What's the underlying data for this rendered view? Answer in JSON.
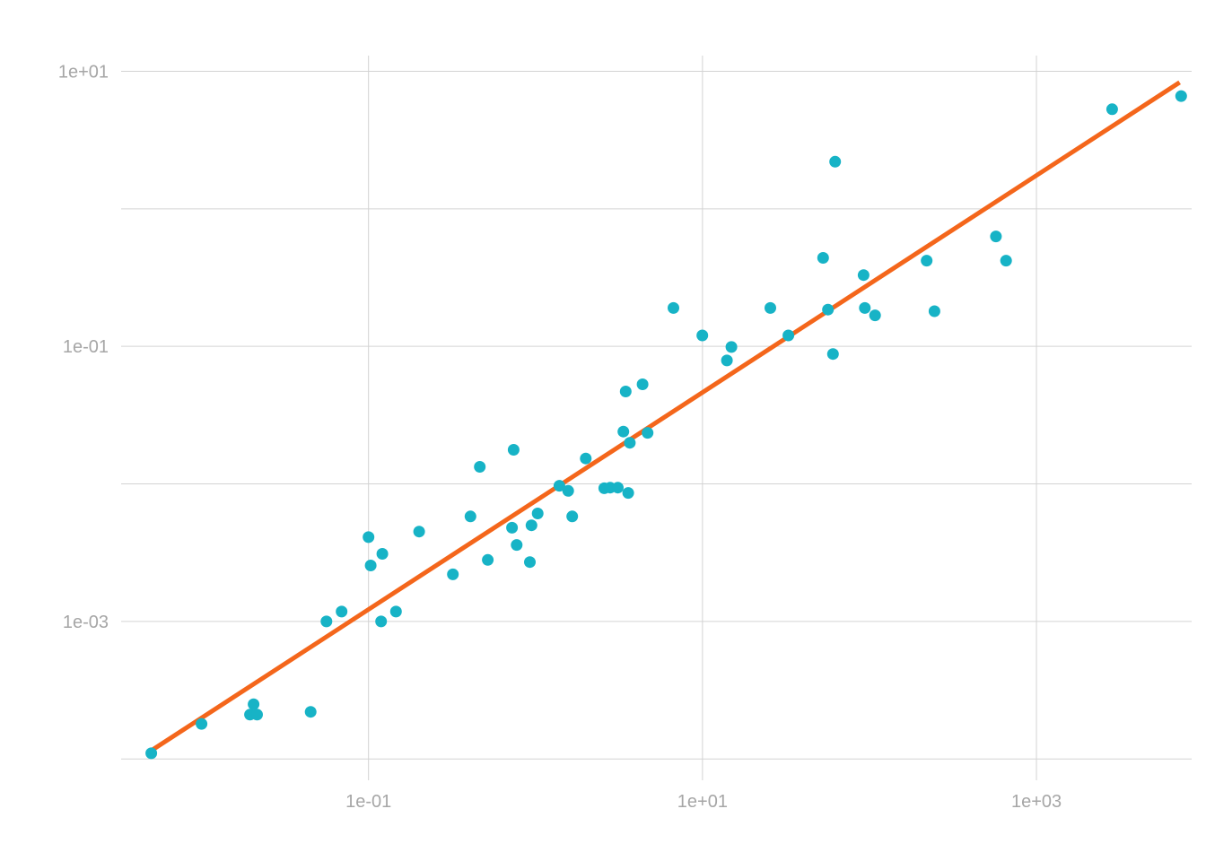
{
  "chart_data": {
    "type": "scatter",
    "x_scale": "log10",
    "y_scale": "log10",
    "xlim": [
      0.0033,
      8500
    ],
    "ylim": [
      7e-05,
      13
    ],
    "x_ticks": [
      {
        "value": 0.1,
        "label": "1e-01"
      },
      {
        "value": 10,
        "label": "1e+01"
      },
      {
        "value": 1000,
        "label": "1e+03"
      }
    ],
    "y_ticks": [
      {
        "value": 0.001,
        "label": "1e-03"
      },
      {
        "value": 0.1,
        "label": "1e-01"
      },
      {
        "value": 10,
        "label": "1e+01"
      }
    ],
    "x_minor_ticks": [],
    "y_minor_ticks": [
      0.0001,
      0.01,
      1
    ],
    "grid": true,
    "legend": "none",
    "series": [
      {
        "type": "scatter",
        "color": "#17b3c6",
        "points": [
          [
            0.005,
            0.00011
          ],
          [
            0.01,
            0.00018
          ],
          [
            0.0195,
            0.00021
          ],
          [
            0.0205,
            0.00025
          ],
          [
            0.0215,
            0.00021
          ],
          [
            0.045,
            0.00022
          ],
          [
            0.056,
            0.001
          ],
          [
            0.069,
            0.00118
          ],
          [
            0.1,
            0.0041
          ],
          [
            0.103,
            0.00255
          ],
          [
            0.119,
            0.001
          ],
          [
            0.121,
            0.0031
          ],
          [
            0.146,
            0.00118
          ],
          [
            0.201,
            0.0045
          ],
          [
            0.32,
            0.0022
          ],
          [
            0.408,
            0.0058
          ],
          [
            0.464,
            0.0133
          ],
          [
            0.518,
            0.0028
          ],
          [
            0.723,
            0.0048
          ],
          [
            0.74,
            0.0177
          ],
          [
            0.771,
            0.0036
          ],
          [
            0.925,
            0.0027
          ],
          [
            0.946,
            0.005
          ],
          [
            1.03,
            0.0061
          ],
          [
            1.39,
            0.0097
          ],
          [
            1.57,
            0.0089
          ],
          [
            1.66,
            0.0058
          ],
          [
            2.0,
            0.0153
          ],
          [
            2.58,
            0.0093
          ],
          [
            2.8,
            0.0094
          ],
          [
            3.11,
            0.0094
          ],
          [
            3.36,
            0.024
          ],
          [
            3.47,
            0.047
          ],
          [
            3.59,
            0.0086
          ],
          [
            3.67,
            0.0199
          ],
          [
            4.38,
            0.053
          ],
          [
            4.69,
            0.0235
          ],
          [
            6.7,
            0.19
          ],
          [
            9.98,
            0.12
          ],
          [
            14.0,
            0.079
          ],
          [
            14.9,
            0.099
          ],
          [
            25.5,
            0.19
          ],
          [
            32.7,
            0.12
          ],
          [
            52.8,
            0.44
          ],
          [
            56.4,
            0.185
          ],
          [
            60.5,
            0.088
          ],
          [
            62.3,
            2.2
          ],
          [
            92.2,
            0.33
          ],
          [
            93.8,
            0.19
          ],
          [
            108,
            0.168
          ],
          [
            220,
            0.42
          ],
          [
            245,
            0.18
          ],
          [
            572,
            0.63
          ],
          [
            658,
            0.42
          ],
          [
            2840,
            5.3
          ],
          [
            7350,
            6.6
          ]
        ]
      },
      {
        "type": "line",
        "color": "#f4661b",
        "points": [
          [
            0.005,
            0.000115
          ],
          [
            7200,
            8.3
          ]
        ]
      }
    ]
  }
}
